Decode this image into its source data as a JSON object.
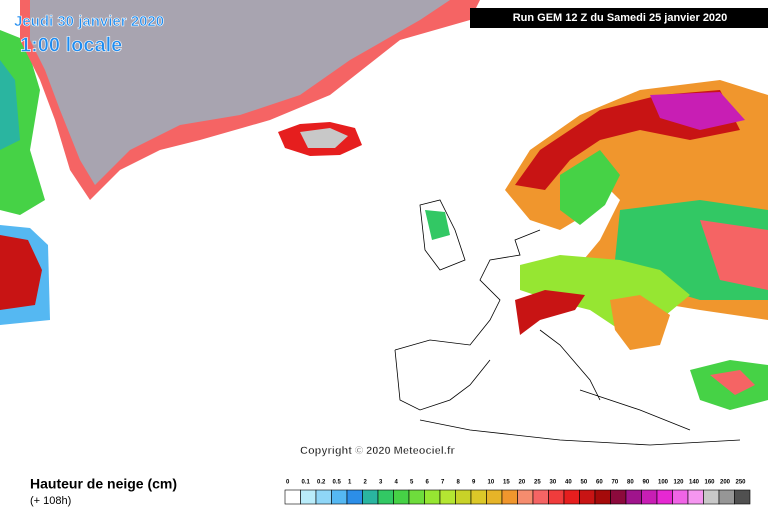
{
  "header": {
    "date": "Jeudi 30 janvier 2020",
    "time": "1:00 locale",
    "run": "Run GEM 12 Z du Samedi 25 janvier 2020"
  },
  "copyright": "Copyright © 2020 Meteociel.fr",
  "legend": {
    "title": "Hauteur de neige (cm)",
    "subtitle": "(+ 108h)",
    "items": [
      {
        "label": "0",
        "color": "#ffffff"
      },
      {
        "label": "0.1",
        "color": "#b9ecfa"
      },
      {
        "label": "0.2",
        "color": "#8fd6f7"
      },
      {
        "label": "0.5",
        "color": "#55b8f2"
      },
      {
        "label": "1",
        "color": "#2c8ee8"
      },
      {
        "label": "2",
        "color": "#2ab5a0"
      },
      {
        "label": "3",
        "color": "#32c864"
      },
      {
        "label": "4",
        "color": "#46d246"
      },
      {
        "label": "5",
        "color": "#6edc3c"
      },
      {
        "label": "6",
        "color": "#96e632"
      },
      {
        "label": "7",
        "color": "#b4e632"
      },
      {
        "label": "8",
        "color": "#c8d228"
      },
      {
        "label": "9",
        "color": "#dcc828"
      },
      {
        "label": "10",
        "color": "#e6b428"
      },
      {
        "label": "15",
        "color": "#f0962d"
      },
      {
        "label": "20",
        "color": "#f58c6e"
      },
      {
        "label": "25",
        "color": "#f56464"
      },
      {
        "label": "30",
        "color": "#f03c3c"
      },
      {
        "label": "40",
        "color": "#e61e1e"
      },
      {
        "label": "50",
        "color": "#c81414"
      },
      {
        "label": "60",
        "color": "#a50a0a"
      },
      {
        "label": "70",
        "color": "#8c0a3c"
      },
      {
        "label": "80",
        "color": "#a0148c"
      },
      {
        "label": "90",
        "color": "#c81eb4"
      },
      {
        "label": "100",
        "color": "#e628d2"
      },
      {
        "label": "120",
        "color": "#f064e6"
      },
      {
        "label": "140",
        "color": "#f596f0"
      },
      {
        "label": "160",
        "color": "#c8c8c8"
      },
      {
        "label": "200",
        "color": "#969696"
      },
      {
        "label": "250",
        "color": "#505050"
      }
    ]
  }
}
